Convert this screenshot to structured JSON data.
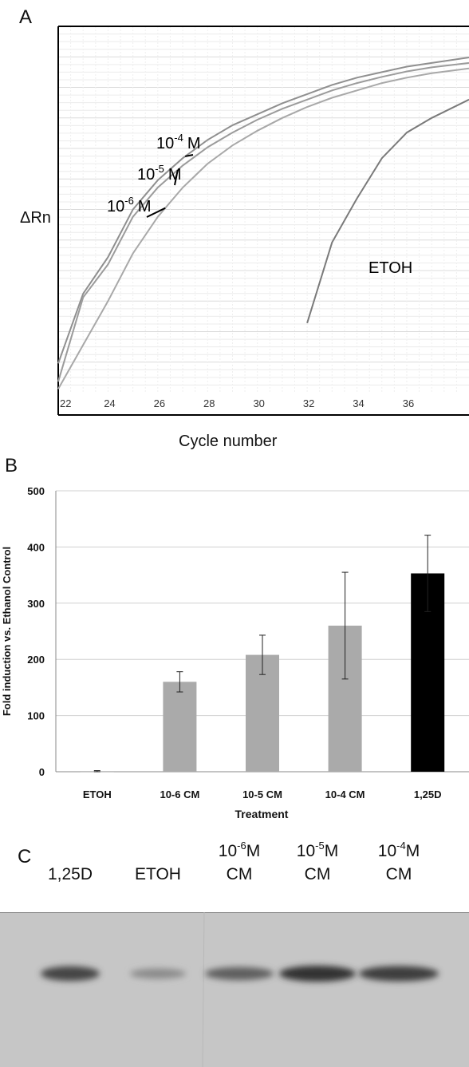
{
  "panels": {
    "a": {
      "letter": "A",
      "xlabel": "Cycle number",
      "ylabel": "ΔRn"
    },
    "b": {
      "letter": "B"
    },
    "c": {
      "letter": "C"
    }
  },
  "chart_data": [
    {
      "type": "line",
      "panel": "A",
      "xlabel": "Cycle number",
      "ylabel": "ΔRn",
      "xlim": [
        22,
        38.5
      ],
      "ylim": [
        0,
        1
      ],
      "x_ticks": [
        22,
        24,
        26,
        28,
        30,
        32,
        34,
        36
      ],
      "x_tick_labels": [
        "22",
        "24",
        "26",
        "28",
        "30",
        "32",
        "34",
        "36"
      ],
      "grid": true,
      "series": [
        {
          "name": "10-4 M",
          "label_base": "10",
          "label_exp": "-4",
          "label_unit": "M",
          "x": [
            22,
            23,
            24,
            25,
            26,
            27,
            28,
            29,
            30,
            31,
            32,
            33,
            34,
            35,
            36,
            37,
            38.5
          ],
          "y": [
            0.08,
            0.27,
            0.37,
            0.5,
            0.58,
            0.64,
            0.69,
            0.73,
            0.76,
            0.79,
            0.815,
            0.84,
            0.86,
            0.875,
            0.89,
            0.9,
            0.915
          ]
        },
        {
          "name": "10-5 M",
          "label_base": "10",
          "label_exp": "-5",
          "label_unit": "M",
          "x": [
            22,
            23,
            24,
            25,
            26,
            27,
            28,
            29,
            30,
            31,
            32,
            33,
            34,
            35,
            36,
            37,
            38.5
          ],
          "y": [
            0.03,
            0.26,
            0.35,
            0.48,
            0.56,
            0.62,
            0.67,
            0.71,
            0.745,
            0.775,
            0.8,
            0.825,
            0.845,
            0.862,
            0.877,
            0.888,
            0.9
          ]
        },
        {
          "name": "10-6 M",
          "label_base": "10",
          "label_exp": "-6",
          "label_unit": "M",
          "x": [
            22,
            23,
            24,
            25,
            26,
            27,
            28,
            29,
            30,
            31,
            32,
            33,
            34,
            35,
            36,
            37,
            38.5
          ],
          "y": [
            0.01,
            0.13,
            0.25,
            0.38,
            0.48,
            0.56,
            0.625,
            0.675,
            0.715,
            0.75,
            0.78,
            0.805,
            0.825,
            0.845,
            0.86,
            0.872,
            0.885
          ]
        },
        {
          "name": "ETOH",
          "label_base": "ETOH",
          "x": [
            32,
            33,
            34,
            35,
            36,
            37,
            38.5
          ],
          "y": [
            0.19,
            0.41,
            0.53,
            0.64,
            0.71,
            0.75,
            0.8
          ]
        }
      ]
    },
    {
      "type": "bar",
      "panel": "B",
      "title": "",
      "xlabel": "Treatment",
      "ylabel": "Fold induction vs. Ethanol Control",
      "ylim": [
        0,
        500
      ],
      "y_ticks": [
        0,
        100,
        200,
        300,
        400,
        500
      ],
      "grid": true,
      "categories": [
        "ETOH",
        "10-6 CM",
        "10-5 CM",
        "10-4 CM",
        "1,25D"
      ],
      "values": [
        1,
        160,
        208,
        260,
        353
      ],
      "error": [
        1,
        18,
        35,
        95,
        68
      ],
      "colors": [
        "#aaaaaa",
        "#aaaaaa",
        "#aaaaaa",
        "#aaaaaa",
        "#000000"
      ]
    }
  ],
  "blot": {
    "lanes": [
      {
        "top": "",
        "top_exp": "",
        "top_unit": "",
        "bottom": "1,25D",
        "intensity": 0.75
      },
      {
        "top": "",
        "top_exp": "",
        "top_unit": "",
        "bottom": "ETOH",
        "intensity": 0.35
      },
      {
        "top": "10",
        "top_exp": "-6",
        "top_unit": "M",
        "bottom": "CM",
        "intensity": 0.6
      },
      {
        "top": "10",
        "top_exp": "-5",
        "top_unit": "M",
        "bottom": "CM",
        "intensity": 0.85
      },
      {
        "top": "10",
        "top_exp": "-4",
        "top_unit": "M",
        "bottom": "CM",
        "intensity": 0.8
      }
    ]
  }
}
